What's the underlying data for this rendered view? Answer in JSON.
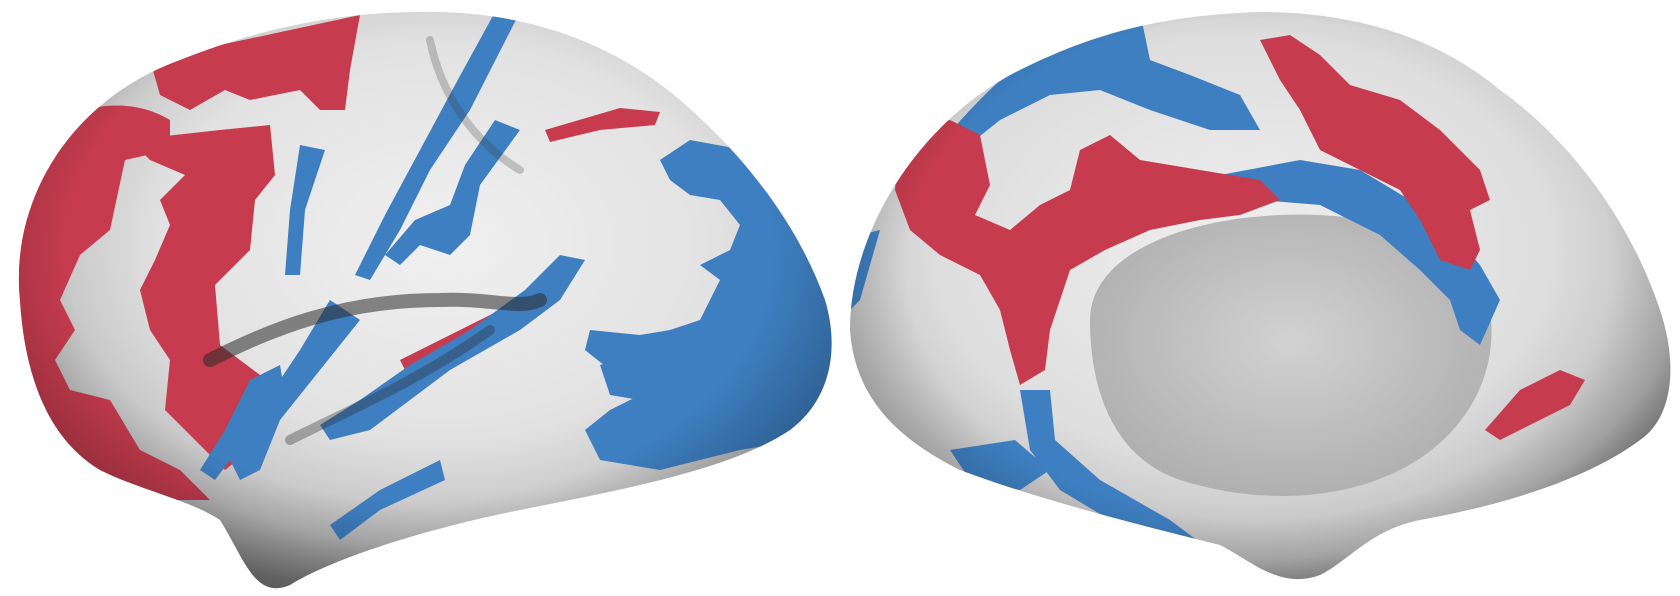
{
  "figure": {
    "views": [
      "lateral",
      "medial"
    ],
    "colors": {
      "background": "#ffffff",
      "cortex_light": "#e8e8e8",
      "cortex_mid": "#c9c9c9",
      "cortex_dark": "#6e6e6e",
      "network_red": "#c63c4e",
      "network_blue": "#3e7fc1"
    }
  }
}
